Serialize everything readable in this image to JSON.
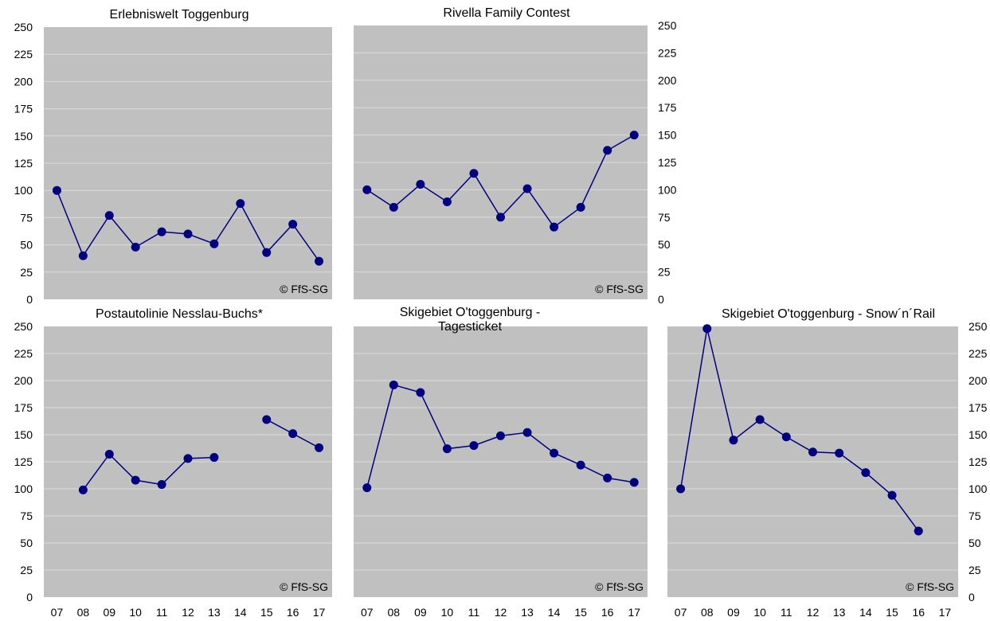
{
  "colors": {
    "plot_bg": "#c0c0c0",
    "grid": "#dcdcdc",
    "series": "#000080",
    "text": "#000000"
  },
  "chart_data": [
    {
      "type": "line",
      "title": "Erlebniswelt Toggenburg",
      "x": [
        "07",
        "08",
        "09",
        "10",
        "11",
        "12",
        "13",
        "14",
        "15",
        "16",
        "17"
      ],
      "series": [
        {
          "values": [
            100,
            40,
            77,
            48,
            62,
            60,
            51,
            88,
            43,
            69,
            35
          ]
        }
      ],
      "ylim": [
        0,
        250
      ],
      "yticks": [
        0,
        25,
        50,
        75,
        100,
        125,
        150,
        175,
        200,
        225,
        250
      ],
      "show_x_tick_labels": false,
      "y_axis_side": "left",
      "grid": true,
      "watermark": "© FfS-SG"
    },
    {
      "type": "line",
      "title": "Rivella Family Contest",
      "x": [
        "07",
        "08",
        "09",
        "10",
        "11",
        "12",
        "13",
        "14",
        "15",
        "16",
        "17"
      ],
      "series": [
        {
          "values": [
            100,
            84,
            105,
            89,
            115,
            75,
            101,
            66,
            84,
            136,
            150
          ]
        }
      ],
      "ylim": [
        0,
        250
      ],
      "yticks": [
        0,
        25,
        50,
        75,
        100,
        125,
        150,
        175,
        200,
        225,
        250
      ],
      "show_x_tick_labels": false,
      "y_axis_side": "right",
      "grid": true,
      "watermark": "© FfS-SG"
    },
    {
      "type": "line",
      "title": "Postautolinie Nesslau-Buchs*",
      "x": [
        "07",
        "08",
        "09",
        "10",
        "11",
        "12",
        "13",
        "14",
        "15",
        "16",
        "17"
      ],
      "series": [
        {
          "values": [
            null,
            99,
            132,
            108,
            104,
            128,
            129,
            null,
            164,
            151,
            138
          ]
        }
      ],
      "ylim": [
        0,
        250
      ],
      "yticks": [
        0,
        25,
        50,
        75,
        100,
        125,
        150,
        175,
        200,
        225,
        250
      ],
      "show_x_tick_labels": true,
      "y_axis_side": "left",
      "grid": true,
      "watermark": "© FfS-SG"
    },
    {
      "type": "line",
      "title": "Skigebiet O'toggenburg -",
      "title_line2": "Tagesticket",
      "x": [
        "07",
        "08",
        "09",
        "10",
        "11",
        "12",
        "13",
        "14",
        "15",
        "16",
        "17"
      ],
      "series": [
        {
          "values": [
            101,
            196,
            189,
            137,
            140,
            149,
            152,
            133,
            122,
            110,
            106
          ]
        }
      ],
      "ylim": [
        0,
        250
      ],
      "yticks": [
        0,
        25,
        50,
        75,
        100,
        125,
        150,
        175,
        200,
        225,
        250
      ],
      "show_x_tick_labels": true,
      "y_axis_side": "none",
      "grid": true,
      "watermark": "© FfS-SG"
    },
    {
      "type": "line",
      "title": "Skigebiet O'toggenburg - Snow´n´Rail",
      "x": [
        "07",
        "08",
        "09",
        "10",
        "11",
        "12",
        "13",
        "14",
        "15",
        "16",
        "17"
      ],
      "series": [
        {
          "values": [
            100,
            248,
            145,
            164,
            148,
            134,
            133,
            115,
            94,
            61,
            null
          ]
        }
      ],
      "ylim": [
        0,
        250
      ],
      "yticks": [
        0,
        25,
        50,
        75,
        100,
        125,
        150,
        175,
        200,
        225,
        250
      ],
      "show_x_tick_labels": true,
      "y_axis_side": "right",
      "grid": true,
      "watermark": "© FfS-SG"
    }
  ]
}
